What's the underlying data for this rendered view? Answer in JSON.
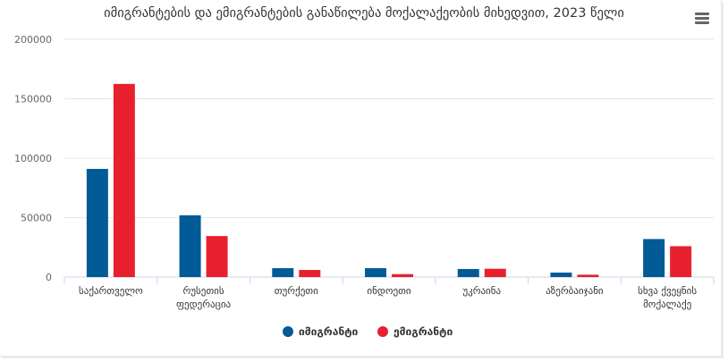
{
  "chart_data": {
    "type": "bar",
    "title": "იმიგრანტების და ემიგრანტების განაწილება მოქალაქეობის მიხედვით, 2023 წელი",
    "categories": [
      [
        "საქართველო"
      ],
      [
        "რუსეთის",
        "ფედერაცია"
      ],
      [
        "თურქეთი"
      ],
      [
        "ინდოეთი"
      ],
      [
        "უკრაინა"
      ],
      [
        "აზერბაიჯანი"
      ],
      [
        "სხვა ქვეყნის",
        "მოქალაქე"
      ]
    ],
    "series": [
      {
        "name": "იმიგრანტი",
        "color": "#005b96",
        "values": [
          91000,
          52000,
          7500,
          7500,
          6800,
          3800,
          32000
        ]
      },
      {
        "name": "ემიგრანტი",
        "color": "#e8202e",
        "values": [
          162500,
          34500,
          6000,
          2500,
          7000,
          2000,
          26000
        ]
      }
    ],
    "ylim": [
      0,
      200000
    ],
    "yticks": [
      0,
      50000,
      100000,
      150000,
      200000
    ],
    "grid": true,
    "legend_position": "bottom-center"
  },
  "menu_icon": "hamburger-menu-icon"
}
